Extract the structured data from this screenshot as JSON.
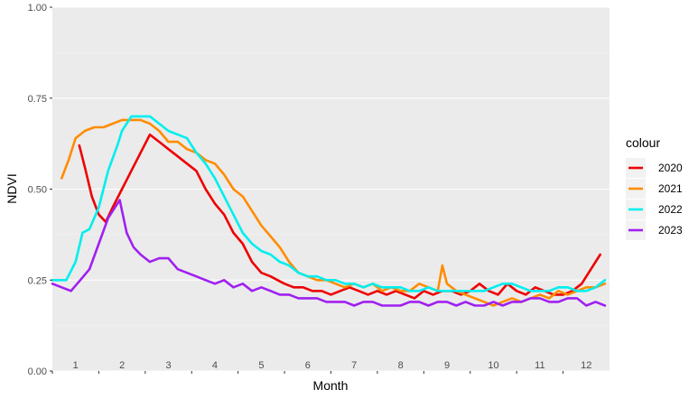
{
  "chart_data": {
    "type": "line",
    "title": "",
    "xlabel": "Month",
    "ylabel": "NDVI",
    "xlim": [
      0.5,
      12.5
    ],
    "ylim": [
      0,
      1
    ],
    "yticks": [
      "0.00",
      "0.25",
      "0.50",
      "0.75",
      "1.00"
    ],
    "ytick_values": [
      0,
      0.25,
      0.5,
      0.75,
      1
    ],
    "xticks": [
      "1",
      "2",
      "3",
      "4",
      "5",
      "6",
      "7",
      "8",
      "9",
      "10",
      "11",
      "12"
    ],
    "grid": true,
    "legend": {
      "title": "colour",
      "position": "right"
    },
    "series": [
      {
        "name": "2020",
        "color": "#ee0000",
        "x": [
          1.08,
          1.2,
          1.35,
          1.5,
          1.65,
          1.8,
          2.0,
          2.2,
          2.4,
          2.6,
          2.8,
          3.0,
          3.2,
          3.4,
          3.6,
          3.8,
          4.0,
          4.2,
          4.4,
          4.6,
          4.8,
          5.0,
          5.2,
          5.35,
          5.5,
          5.7,
          5.9,
          6.1,
          6.3,
          6.5,
          6.7,
          6.9,
          7.1,
          7.3,
          7.5,
          7.7,
          7.9,
          8.1,
          8.3,
          8.5,
          8.7,
          8.9,
          9.1,
          9.3,
          9.5,
          9.7,
          9.9,
          10.1,
          10.3,
          10.5,
          10.7,
          10.9,
          11.1,
          11.3,
          11.5,
          11.7,
          11.9,
          12.1,
          12.3
        ],
        "y": [
          0.62,
          0.56,
          0.48,
          0.43,
          0.41,
          0.45,
          0.5,
          0.55,
          0.6,
          0.65,
          0.63,
          0.61,
          0.59,
          0.57,
          0.55,
          0.5,
          0.46,
          0.43,
          0.38,
          0.35,
          0.3,
          0.27,
          0.26,
          0.25,
          0.24,
          0.23,
          0.23,
          0.22,
          0.22,
          0.21,
          0.22,
          0.23,
          0.22,
          0.21,
          0.22,
          0.21,
          0.22,
          0.21,
          0.2,
          0.22,
          0.21,
          0.22,
          0.22,
          0.21,
          0.22,
          0.24,
          0.22,
          0.21,
          0.24,
          0.22,
          0.21,
          0.23,
          0.22,
          0.21,
          0.21,
          0.22,
          0.24,
          0.28,
          0.32
        ]
      },
      {
        "name": "2021",
        "color": "#ff8c00",
        "x": [
          0.7,
          0.85,
          1.0,
          1.2,
          1.4,
          1.6,
          1.8,
          2.0,
          2.2,
          2.4,
          2.6,
          2.8,
          3.0,
          3.2,
          3.4,
          3.6,
          3.8,
          4.0,
          4.2,
          4.4,
          4.6,
          4.8,
          5.0,
          5.2,
          5.4,
          5.6,
          5.8,
          6.0,
          6.2,
          6.4,
          6.6,
          6.8,
          7.0,
          7.2,
          7.4,
          7.6,
          7.8,
          8.0,
          8.2,
          8.4,
          8.6,
          8.8,
          8.9,
          9.0,
          9.2,
          9.4,
          9.6,
          9.8,
          10.0,
          10.2,
          10.4,
          10.6,
          10.8,
          11.0,
          11.2,
          11.4,
          11.6,
          11.8,
          12.0,
          12.2,
          12.4
        ],
        "y": [
          0.53,
          0.58,
          0.64,
          0.66,
          0.67,
          0.67,
          0.68,
          0.69,
          0.69,
          0.69,
          0.68,
          0.66,
          0.63,
          0.63,
          0.61,
          0.6,
          0.58,
          0.57,
          0.54,
          0.5,
          0.48,
          0.44,
          0.4,
          0.37,
          0.34,
          0.3,
          0.27,
          0.26,
          0.25,
          0.25,
          0.24,
          0.23,
          0.24,
          0.23,
          0.24,
          0.22,
          0.23,
          0.22,
          0.22,
          0.24,
          0.23,
          0.22,
          0.29,
          0.24,
          0.22,
          0.21,
          0.2,
          0.19,
          0.18,
          0.19,
          0.2,
          0.19,
          0.2,
          0.21,
          0.2,
          0.22,
          0.21,
          0.22,
          0.23,
          0.23,
          0.24
        ]
      },
      {
        "name": "2022",
        "color": "#00eeee",
        "x": [
          0.5,
          0.8,
          1.0,
          1.15,
          1.3,
          1.5,
          1.7,
          1.9,
          2.0,
          2.2,
          2.4,
          2.5,
          2.6,
          2.8,
          3.0,
          3.2,
          3.4,
          3.6,
          3.8,
          4.0,
          4.2,
          4.4,
          4.6,
          4.8,
          5.0,
          5.2,
          5.4,
          5.6,
          5.8,
          6.0,
          6.2,
          6.4,
          6.6,
          6.8,
          7.0,
          7.2,
          7.4,
          7.6,
          7.8,
          8.0,
          8.2,
          8.4,
          8.6,
          8.8,
          9.0,
          9.2,
          9.4,
          9.6,
          9.8,
          10.0,
          10.2,
          10.4,
          10.6,
          10.8,
          11.0,
          11.2,
          11.4,
          11.6,
          11.8,
          12.0,
          12.2,
          12.4
        ],
        "y": [
          0.25,
          0.25,
          0.3,
          0.38,
          0.39,
          0.45,
          0.55,
          0.62,
          0.66,
          0.7,
          0.7,
          0.7,
          0.7,
          0.68,
          0.66,
          0.65,
          0.64,
          0.6,
          0.57,
          0.53,
          0.48,
          0.43,
          0.38,
          0.35,
          0.33,
          0.32,
          0.3,
          0.29,
          0.27,
          0.26,
          0.26,
          0.25,
          0.25,
          0.24,
          0.24,
          0.23,
          0.24,
          0.23,
          0.23,
          0.23,
          0.22,
          0.22,
          0.23,
          0.22,
          0.22,
          0.22,
          0.22,
          0.22,
          0.22,
          0.23,
          0.24,
          0.24,
          0.23,
          0.22,
          0.22,
          0.22,
          0.23,
          0.23,
          0.22,
          0.22,
          0.23,
          0.25
        ]
      },
      {
        "name": "2023",
        "color": "#a020f0",
        "x": [
          0.5,
          0.7,
          0.9,
          1.1,
          1.3,
          1.5,
          1.7,
          1.85,
          1.95,
          2.1,
          2.25,
          2.4,
          2.6,
          2.8,
          3.0,
          3.2,
          3.4,
          3.6,
          3.8,
          4.0,
          4.2,
          4.4,
          4.6,
          4.8,
          5.0,
          5.2,
          5.4,
          5.6,
          5.8,
          6.0,
          6.2,
          6.4,
          6.6,
          6.8,
          7.0,
          7.2,
          7.4,
          7.6,
          7.8,
          8.0,
          8.2,
          8.4,
          8.6,
          8.8,
          9.0,
          9.2,
          9.4,
          9.6,
          9.8,
          10.0,
          10.2,
          10.4,
          10.6,
          10.8,
          11.0,
          11.2,
          11.4,
          11.6,
          11.8,
          12.0,
          12.2,
          12.4
        ],
        "y": [
          0.24,
          0.23,
          0.22,
          0.25,
          0.28,
          0.35,
          0.42,
          0.45,
          0.47,
          0.38,
          0.34,
          0.32,
          0.3,
          0.31,
          0.31,
          0.28,
          0.27,
          0.26,
          0.25,
          0.24,
          0.25,
          0.23,
          0.24,
          0.22,
          0.23,
          0.22,
          0.21,
          0.21,
          0.2,
          0.2,
          0.2,
          0.19,
          0.19,
          0.19,
          0.18,
          0.19,
          0.19,
          0.18,
          0.18,
          0.18,
          0.19,
          0.19,
          0.18,
          0.19,
          0.19,
          0.18,
          0.19,
          0.18,
          0.18,
          0.19,
          0.18,
          0.19,
          0.19,
          0.2,
          0.2,
          0.19,
          0.19,
          0.2,
          0.2,
          0.18,
          0.19,
          0.18
        ]
      }
    ]
  }
}
